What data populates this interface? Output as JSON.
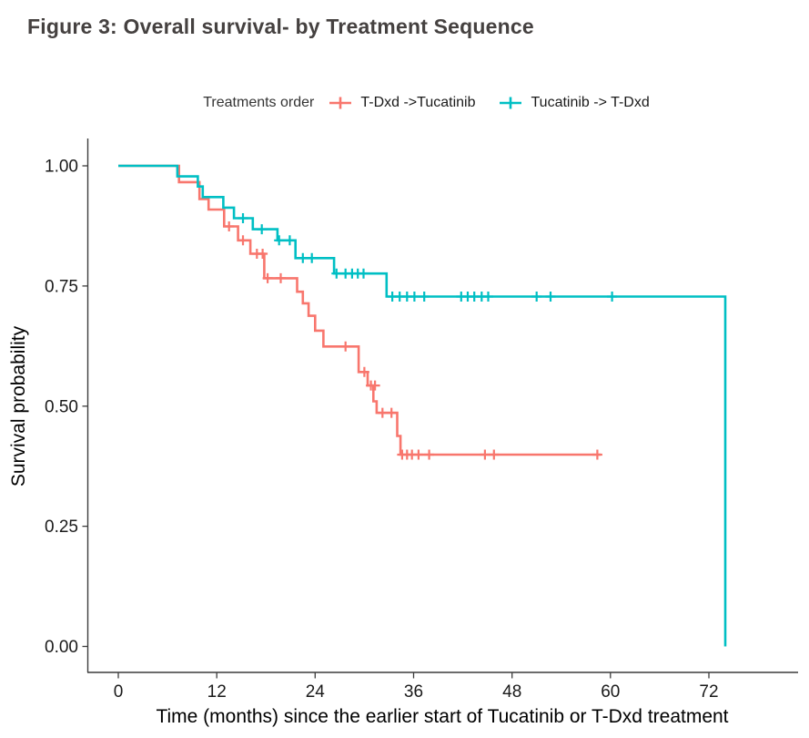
{
  "figure": {
    "title": "Figure 3: Overall survival- by Treatment Sequence"
  },
  "legend": {
    "title": "Treatments order",
    "items": [
      {
        "label": "T-Dxd ->Tucatinib",
        "color": "#F8766D"
      },
      {
        "label": "Tucatinib -> T-Dxd",
        "color": "#00BFC4"
      }
    ]
  },
  "chart_data": {
    "type": "line",
    "subtype": "kaplan-meier-step",
    "title": "Figure 3: Overall survival- by Treatment Sequence",
    "xlabel": "Time (months) since the earlier start of Tucatinib or T-Dxd treatment",
    "ylabel": "Survival probability",
    "xlim": [
      0,
      82
    ],
    "ylim": [
      0,
      1.0
    ],
    "grid": false,
    "legend_position": "top",
    "x_ticks": [
      0,
      12,
      24,
      36,
      48,
      60,
      72
    ],
    "y_ticks": [
      {
        "label": "1.00",
        "value": 1.0
      },
      {
        "label": "0.75",
        "value": 0.75
      },
      {
        "label": "0.50",
        "value": 0.5
      },
      {
        "label": "0.25",
        "value": 0.25
      },
      {
        "label": "0.00",
        "value": 0.0
      }
    ],
    "series": [
      {
        "name": "T-Dxd ->Tucatinib",
        "color": "#F8766D",
        "points": [
          [
            0,
            1.0
          ],
          [
            7.4,
            0.966
          ],
          [
            9.9,
            0.931
          ],
          [
            11.0,
            0.909
          ],
          [
            12.9,
            0.874
          ],
          [
            14.6,
            0.845
          ],
          [
            16.1,
            0.817
          ],
          [
            17.8,
            0.766
          ],
          [
            21.8,
            0.738
          ],
          [
            22.5,
            0.714
          ],
          [
            23.2,
            0.688
          ],
          [
            24.0,
            0.657
          ],
          [
            25.0,
            0.624
          ],
          [
            29.3,
            0.571
          ],
          [
            30.4,
            0.543
          ],
          [
            31.1,
            0.51
          ],
          [
            31.5,
            0.486
          ],
          [
            34.0,
            0.438
          ],
          [
            34.4,
            0.399
          ]
        ],
        "end_month": 58.8,
        "censors": [
          [
            13.5,
            0.874
          ],
          [
            15.2,
            0.845
          ],
          [
            16.9,
            0.817
          ],
          [
            17.6,
            0.817
          ],
          [
            18.2,
            0.766
          ],
          [
            19.8,
            0.766
          ],
          [
            27.7,
            0.624
          ],
          [
            30.0,
            0.571
          ],
          [
            30.8,
            0.543
          ],
          [
            31.3,
            0.543
          ],
          [
            32.2,
            0.486
          ],
          [
            33.3,
            0.486
          ],
          [
            34.6,
            0.399
          ],
          [
            35.2,
            0.399
          ],
          [
            35.8,
            0.399
          ],
          [
            36.6,
            0.399
          ],
          [
            37.9,
            0.399
          ],
          [
            44.7,
            0.399
          ],
          [
            45.8,
            0.399
          ],
          [
            58.4,
            0.399
          ]
        ]
      },
      {
        "name": "Tucatinib -> T-Dxd",
        "color": "#00BFC4",
        "points": [
          [
            0,
            1.0
          ],
          [
            7.2,
            0.978
          ],
          [
            9.7,
            0.957
          ],
          [
            10.3,
            0.935
          ],
          [
            12.8,
            0.913
          ],
          [
            14.1,
            0.891
          ],
          [
            16.4,
            0.868
          ],
          [
            19.4,
            0.845
          ],
          [
            21.6,
            0.808
          ],
          [
            26.3,
            0.776
          ],
          [
            32.7,
            0.728
          ],
          [
            74.0,
            0.0
          ]
        ],
        "end_month": null,
        "censors": [
          [
            15.2,
            0.891
          ],
          [
            17.5,
            0.868
          ],
          [
            19.6,
            0.845
          ],
          [
            20.9,
            0.845
          ],
          [
            22.5,
            0.808
          ],
          [
            23.6,
            0.808
          ],
          [
            26.6,
            0.776
          ],
          [
            27.7,
            0.776
          ],
          [
            28.5,
            0.776
          ],
          [
            29.2,
            0.776
          ],
          [
            29.9,
            0.776
          ],
          [
            33.4,
            0.728
          ],
          [
            34.3,
            0.728
          ],
          [
            35.2,
            0.728
          ],
          [
            36.1,
            0.728
          ],
          [
            37.3,
            0.728
          ],
          [
            41.8,
            0.728
          ],
          [
            42.6,
            0.728
          ],
          [
            43.4,
            0.728
          ],
          [
            44.3,
            0.728
          ],
          [
            45.1,
            0.728
          ],
          [
            51.0,
            0.728
          ],
          [
            52.7,
            0.728
          ],
          [
            60.2,
            0.728
          ]
        ]
      }
    ]
  }
}
